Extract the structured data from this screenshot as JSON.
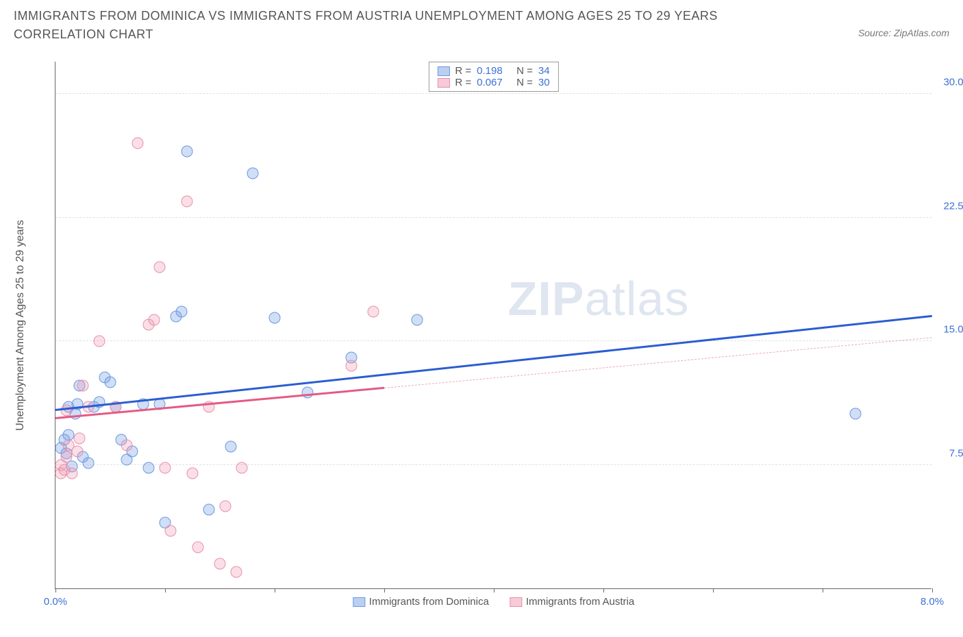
{
  "title": "IMMIGRANTS FROM DOMINICA VS IMMIGRANTS FROM AUSTRIA UNEMPLOYMENT AMONG AGES 25 TO 29 YEARS CORRELATION CHART",
  "source": "Source: ZipAtlas.com",
  "y_axis_label": "Unemployment Among Ages 25 to 29 years",
  "watermark_bold": "ZIP",
  "watermark_light": "atlas",
  "chart": {
    "type": "scatter",
    "xlim": [
      0,
      8
    ],
    "ylim": [
      0,
      32
    ],
    "x_ticks": [
      0,
      1,
      2,
      3,
      4,
      5,
      6,
      7,
      8
    ],
    "x_tick_labels": {
      "0": "0.0%",
      "8": "8.0%"
    },
    "y_ticks": [
      7.5,
      15.0,
      22.5,
      30.0
    ],
    "y_tick_labels": [
      "7.5%",
      "15.0%",
      "22.5%",
      "30.0%"
    ],
    "background_color": "#ffffff",
    "grid_color": "#e0e0e0",
    "axis_color": "#666666",
    "marker_radius": 8.5,
    "series": [
      {
        "name": "Immigrants from Dominica",
        "key": "blue",
        "fill": "rgba(120,160,230,0.35)",
        "stroke": "#6a98e0",
        "R": "0.198",
        "N": "34",
        "trend": {
          "color": "#2a5dd0",
          "x1": 0,
          "y1": 10.8,
          "x2": 8,
          "y2": 16.5,
          "solid_until": 8
        },
        "points": [
          [
            0.05,
            8.5
          ],
          [
            0.08,
            9.0
          ],
          [
            0.1,
            8.2
          ],
          [
            0.12,
            9.3
          ],
          [
            0.12,
            11.0
          ],
          [
            0.15,
            7.4
          ],
          [
            0.18,
            10.6
          ],
          [
            0.2,
            11.2
          ],
          [
            0.22,
            12.3
          ],
          [
            0.25,
            8.0
          ],
          [
            0.3,
            7.6
          ],
          [
            0.35,
            11.0
          ],
          [
            0.4,
            11.3
          ],
          [
            0.45,
            12.8
          ],
          [
            0.6,
            9.0
          ],
          [
            0.65,
            7.8
          ],
          [
            0.7,
            8.3
          ],
          [
            0.8,
            11.2
          ],
          [
            0.85,
            7.3
          ],
          [
            1.0,
            4.0
          ],
          [
            1.1,
            16.5
          ],
          [
            1.15,
            16.8
          ],
          [
            1.2,
            26.5
          ],
          [
            1.4,
            4.8
          ],
          [
            1.6,
            8.6
          ],
          [
            1.8,
            25.2
          ],
          [
            2.0,
            16.4
          ],
          [
            2.3,
            11.9
          ],
          [
            2.7,
            14.0
          ],
          [
            3.3,
            16.3
          ],
          [
            7.3,
            10.6
          ],
          [
            0.5,
            12.5
          ],
          [
            0.55,
            11.0
          ],
          [
            0.95,
            11.2
          ]
        ]
      },
      {
        "name": "Immigrants from Austria",
        "key": "pink",
        "fill": "rgba(240,150,175,0.30)",
        "stroke": "#e890aa",
        "R": "0.067",
        "N": "30",
        "trend": {
          "color": "#e35a85",
          "x1": 0,
          "y1": 10.3,
          "x2": 8,
          "y2": 15.2,
          "solid_until": 3.0
        },
        "points": [
          [
            0.05,
            7.0
          ],
          [
            0.05,
            7.5
          ],
          [
            0.08,
            7.2
          ],
          [
            0.1,
            8.0
          ],
          [
            0.1,
            10.8
          ],
          [
            0.12,
            8.7
          ],
          [
            0.15,
            7.0
          ],
          [
            0.2,
            8.3
          ],
          [
            0.22,
            9.1
          ],
          [
            0.25,
            12.3
          ],
          [
            0.3,
            11.0
          ],
          [
            0.4,
            15.0
          ],
          [
            0.55,
            11.0
          ],
          [
            0.65,
            8.7
          ],
          [
            0.75,
            27.0
          ],
          [
            0.85,
            16.0
          ],
          [
            0.9,
            16.3
          ],
          [
            0.95,
            19.5
          ],
          [
            1.0,
            7.3
          ],
          [
            1.05,
            3.5
          ],
          [
            1.2,
            23.5
          ],
          [
            1.25,
            7.0
          ],
          [
            1.3,
            2.5
          ],
          [
            1.4,
            11.0
          ],
          [
            1.5,
            1.5
          ],
          [
            1.55,
            5.0
          ],
          [
            1.65,
            1.0
          ],
          [
            1.7,
            7.3
          ],
          [
            2.7,
            13.5
          ],
          [
            2.9,
            16.8
          ]
        ]
      }
    ]
  },
  "legend_top": {
    "rows": [
      {
        "swatch": "blue",
        "r_label": "R =",
        "r_val": "0.198",
        "n_label": "N =",
        "n_val": "34"
      },
      {
        "swatch": "pink",
        "r_label": "R =",
        "r_val": "0.067",
        "n_label": "N =",
        "n_val": "30"
      }
    ]
  },
  "legend_bottom": [
    {
      "swatch": "blue",
      "label": "Immigrants from Dominica"
    },
    {
      "swatch": "pink",
      "label": "Immigrants from Austria"
    }
  ]
}
